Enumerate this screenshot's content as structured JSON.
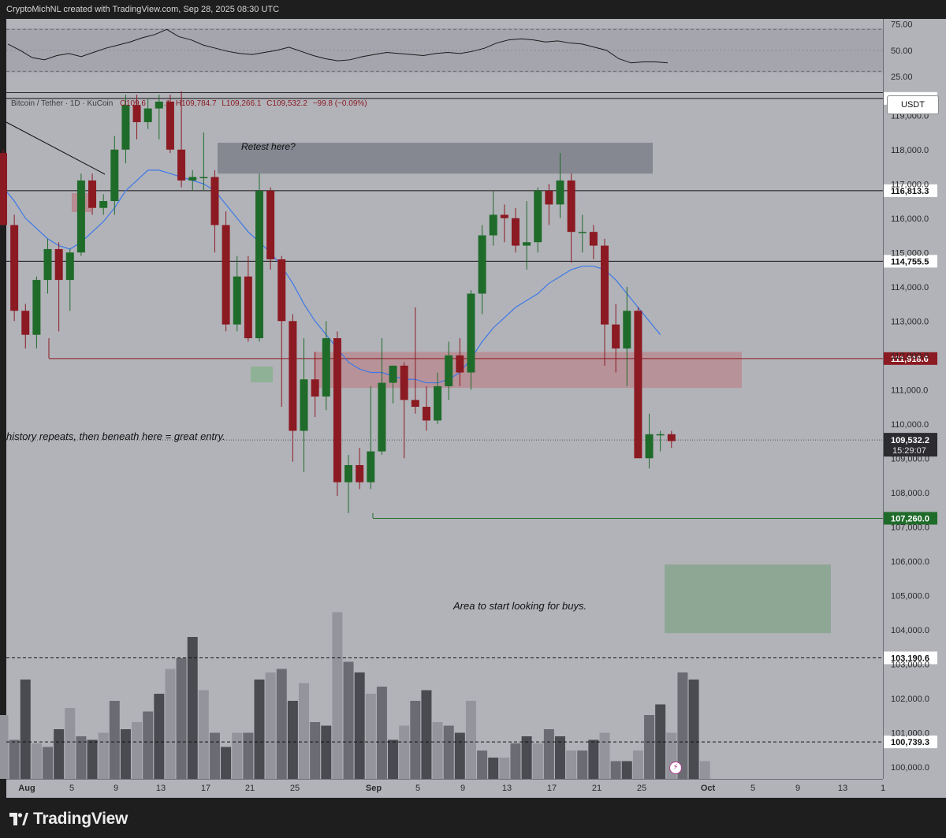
{
  "header": {
    "attribution": "CryptoMichNL created with TradingView.com, Sep 28, 2025 08:30 UTC"
  },
  "symbol_line": {
    "name": "Bitcoin / Tether · 1D · KuCoin",
    "ohlc": "O109,6",
    "ohlc_2": ".1",
    "high": "H109,784.7",
    "low": "L109,266.1",
    "close": "C109,532.2",
    "change": "−99.8 (−0.09%)"
  },
  "currency": "USDT",
  "footer": {
    "brand": "TradingView"
  },
  "colors": {
    "up": "#1f6b2a",
    "down": "#8b1a22",
    "ma": "#3b78e7",
    "background": "#b2b3b9",
    "resistance_zone": "#858891",
    "support_zone": "#b98c93",
    "buy_zone": "#8ea795"
  },
  "chart_data": [
    {
      "type": "line",
      "title": "",
      "series": [
        {
          "values": [
            56,
            50,
            43,
            41,
            45,
            47,
            44,
            48,
            52,
            55,
            58,
            62,
            65,
            70,
            63,
            60,
            55,
            52,
            49,
            47,
            46,
            48,
            50,
            53,
            49,
            45,
            42,
            40,
            41,
            44,
            46,
            48,
            47,
            46,
            45,
            47,
            48,
            47,
            49,
            52,
            57,
            60,
            61,
            60,
            58,
            59,
            57,
            56,
            53,
            50,
            42,
            38,
            39,
            39,
            38
          ]
        }
      ],
      "ylim": [
        10,
        80
      ],
      "y_ticks": [
        "75.00",
        "50.00",
        "25.00"
      ],
      "bands": [
        30,
        70
      ]
    },
    {
      "type": "candlestick",
      "title": "",
      "x_ticks": [
        "Aug",
        "5",
        "9",
        "13",
        "17",
        "21",
        "25",
        "Sep",
        "5",
        "9",
        "13",
        "17",
        "21",
        "25",
        "Oct",
        "5",
        "9",
        "13",
        "1"
      ],
      "y_ticks": [
        "119,000.0",
        "118,000.0",
        "117,000.0",
        "116,000.0",
        "115,000.0",
        "114,000.0",
        "113,000.0",
        "112,000.0",
        "111,000.0",
        "110,000.0",
        "109,000.0",
        "108,000.0",
        "107,000.0",
        "106,000.0",
        "105,000.0",
        "104,000.0",
        "103,000.0",
        "102,000.0",
        "101,000.0",
        "100,000.0"
      ],
      "ylim": [
        99650,
        119650
      ],
      "candles": [
        {
          "o": 117900,
          "h": 118000,
          "l": 115800,
          "c": 115800
        },
        {
          "o": 115800,
          "h": 116100,
          "l": 113000,
          "c": 113300
        },
        {
          "o": 113300,
          "h": 113500,
          "l": 112200,
          "c": 112600
        },
        {
          "o": 112600,
          "h": 114300,
          "l": 112200,
          "c": 114200
        },
        {
          "o": 114200,
          "h": 115400,
          "l": 113800,
          "c": 115100
        },
        {
          "o": 115100,
          "h": 115300,
          "l": 112700,
          "c": 114200
        },
        {
          "o": 114200,
          "h": 115100,
          "l": 113300,
          "c": 115000
        },
        {
          "o": 115000,
          "h": 117300,
          "l": 114900,
          "c": 117100
        },
        {
          "o": 117100,
          "h": 117300,
          "l": 116100,
          "c": 116300
        },
        {
          "o": 116300,
          "h": 116700,
          "l": 116100,
          "c": 116500
        },
        {
          "o": 116500,
          "h": 118400,
          "l": 116100,
          "c": 118000
        },
        {
          "o": 118000,
          "h": 119600,
          "l": 117600,
          "c": 119300
        },
        {
          "o": 119300,
          "h": 119600,
          "l": 118300,
          "c": 118800
        },
        {
          "o": 118800,
          "h": 119500,
          "l": 118600,
          "c": 119200
        },
        {
          "o": 119200,
          "h": 119600,
          "l": 118300,
          "c": 119400
        },
        {
          "o": 119400,
          "h": 119600,
          "l": 117900,
          "c": 118000
        },
        {
          "o": 118000,
          "h": 119700,
          "l": 116900,
          "c": 117100
        },
        {
          "o": 117100,
          "h": 117400,
          "l": 116800,
          "c": 117200
        },
        {
          "o": 117200,
          "h": 118500,
          "l": 116800,
          "c": 117200
        },
        {
          "o": 117200,
          "h": 117400,
          "l": 115000,
          "c": 115800
        },
        {
          "o": 115800,
          "h": 116200,
          "l": 112700,
          "c": 112900
        },
        {
          "o": 112900,
          "h": 114900,
          "l": 112700,
          "c": 114300
        },
        {
          "o": 114300,
          "h": 114900,
          "l": 112400,
          "c": 112500
        },
        {
          "o": 112500,
          "h": 117300,
          "l": 112400,
          "c": 116800
        },
        {
          "o": 116800,
          "h": 116900,
          "l": 114500,
          "c": 114800
        },
        {
          "o": 114800,
          "h": 114900,
          "l": 110500,
          "c": 113000
        },
        {
          "o": 113000,
          "h": 113200,
          "l": 108900,
          "c": 109800
        },
        {
          "o": 109800,
          "h": 112500,
          "l": 108600,
          "c": 111300
        },
        {
          "o": 111300,
          "h": 112100,
          "l": 110200,
          "c": 110800
        },
        {
          "o": 110800,
          "h": 113000,
          "l": 110400,
          "c": 112500
        },
        {
          "o": 112500,
          "h": 112700,
          "l": 107900,
          "c": 108300
        },
        {
          "o": 108300,
          "h": 109100,
          "l": 107400,
          "c": 108800
        },
        {
          "o": 108800,
          "h": 109300,
          "l": 108100,
          "c": 108300
        },
        {
          "o": 108300,
          "h": 111100,
          "l": 108100,
          "c": 109200
        },
        {
          "o": 109200,
          "h": 112500,
          "l": 109100,
          "c": 111200
        },
        {
          "o": 111200,
          "h": 111700,
          "l": 110600,
          "c": 111700
        },
        {
          "o": 111700,
          "h": 111800,
          "l": 109000,
          "c": 110700
        },
        {
          "o": 110700,
          "h": 113400,
          "l": 110300,
          "c": 110500
        },
        {
          "o": 110500,
          "h": 111100,
          "l": 109800,
          "c": 110100
        },
        {
          "o": 110100,
          "h": 111500,
          "l": 110000,
          "c": 111100
        },
        {
          "o": 111100,
          "h": 112400,
          "l": 110700,
          "c": 112000
        },
        {
          "o": 112000,
          "h": 112500,
          "l": 111100,
          "c": 111500
        },
        {
          "o": 111500,
          "h": 113900,
          "l": 111000,
          "c": 113800
        },
        {
          "o": 113800,
          "h": 115800,
          "l": 113200,
          "c": 115500
        },
        {
          "o": 115500,
          "h": 116800,
          "l": 115200,
          "c": 116100
        },
        {
          "o": 116100,
          "h": 116400,
          "l": 115300,
          "c": 116000
        },
        {
          "o": 116000,
          "h": 116300,
          "l": 115000,
          "c": 115200
        },
        {
          "o": 115200,
          "h": 116500,
          "l": 114500,
          "c": 115300
        },
        {
          "o": 115300,
          "h": 116900,
          "l": 115000,
          "c": 116800
        },
        {
          "o": 116800,
          "h": 117000,
          "l": 115800,
          "c": 116400
        },
        {
          "o": 116400,
          "h": 117900,
          "l": 116000,
          "c": 117100
        },
        {
          "o": 117100,
          "h": 117300,
          "l": 114700,
          "c": 115600
        },
        {
          "o": 115600,
          "h": 116100,
          "l": 115000,
          "c": 115600
        },
        {
          "o": 115600,
          "h": 115800,
          "l": 114800,
          "c": 115200
        },
        {
          "o": 115200,
          "h": 115400,
          "l": 111700,
          "c": 112900
        },
        {
          "o": 112900,
          "h": 113500,
          "l": 111500,
          "c": 112200
        },
        {
          "o": 112200,
          "h": 114000,
          "l": 111100,
          "c": 113300
        },
        {
          "o": 113300,
          "h": 113400,
          "l": 109000,
          "c": 109000
        },
        {
          "o": 109000,
          "h": 110300,
          "l": 108700,
          "c": 109700
        },
        {
          "o": 109700,
          "h": 109800,
          "l": 109200,
          "c": 109700
        },
        {
          "o": 109700,
          "h": 109800,
          "l": 109300,
          "c": 109500
        }
      ],
      "moving_average": [
        116900,
        116500,
        116000,
        115700,
        115400,
        115200,
        115100,
        115300,
        115600,
        115900,
        116300,
        116800,
        117100,
        117400,
        117400,
        117300,
        117200,
        117100,
        117000,
        116800,
        116400,
        116000,
        115600,
        115300,
        115000,
        114600,
        114100,
        113500,
        113000,
        112600,
        112200,
        111800,
        111600,
        111500,
        111500,
        111400,
        111300,
        111300,
        111200,
        111200,
        111300,
        111500,
        111900,
        112400,
        112800,
        113100,
        113400,
        113600,
        113800,
        114100,
        114300,
        114500,
        114600,
        114600,
        114500,
        114200,
        113800,
        113400,
        113000,
        112600
      ],
      "levels": [
        "119,504.8",
        "116,813.3",
        "114,755.5",
        "111,918.6",
        "107,260.0",
        "103,190.6",
        "100,739.3"
      ],
      "current_price": "109,532.2",
      "countdown": "15:29:07",
      "annotations": [
        "Retest here?",
        "history repeats, then beneath here = great entry.",
        "Area to start looking for buys."
      ],
      "zones": [
        {
          "label": "resistance",
          "from": 117300,
          "to": 118200
        },
        {
          "label": "support",
          "from": 111050,
          "to": 112100
        },
        {
          "label": "buy",
          "from": 103900,
          "to": 105900
        }
      ]
    },
    {
      "type": "bar",
      "title": "",
      "values": [
        18,
        11,
        28,
        10,
        9,
        14,
        20,
        12,
        11,
        13,
        22,
        14,
        16,
        19,
        24,
        31,
        34,
        40,
        25,
        13,
        9,
        13,
        13,
        28,
        30,
        31,
        22,
        27,
        16,
        15,
        47,
        33,
        30,
        24,
        26,
        11,
        15,
        22,
        25,
        16,
        15,
        13,
        22,
        8,
        6,
        6,
        10,
        12,
        10,
        14,
        12,
        8,
        8,
        11,
        13,
        5,
        5,
        8,
        18,
        21,
        13,
        30,
        28,
        5
      ]
    }
  ]
}
